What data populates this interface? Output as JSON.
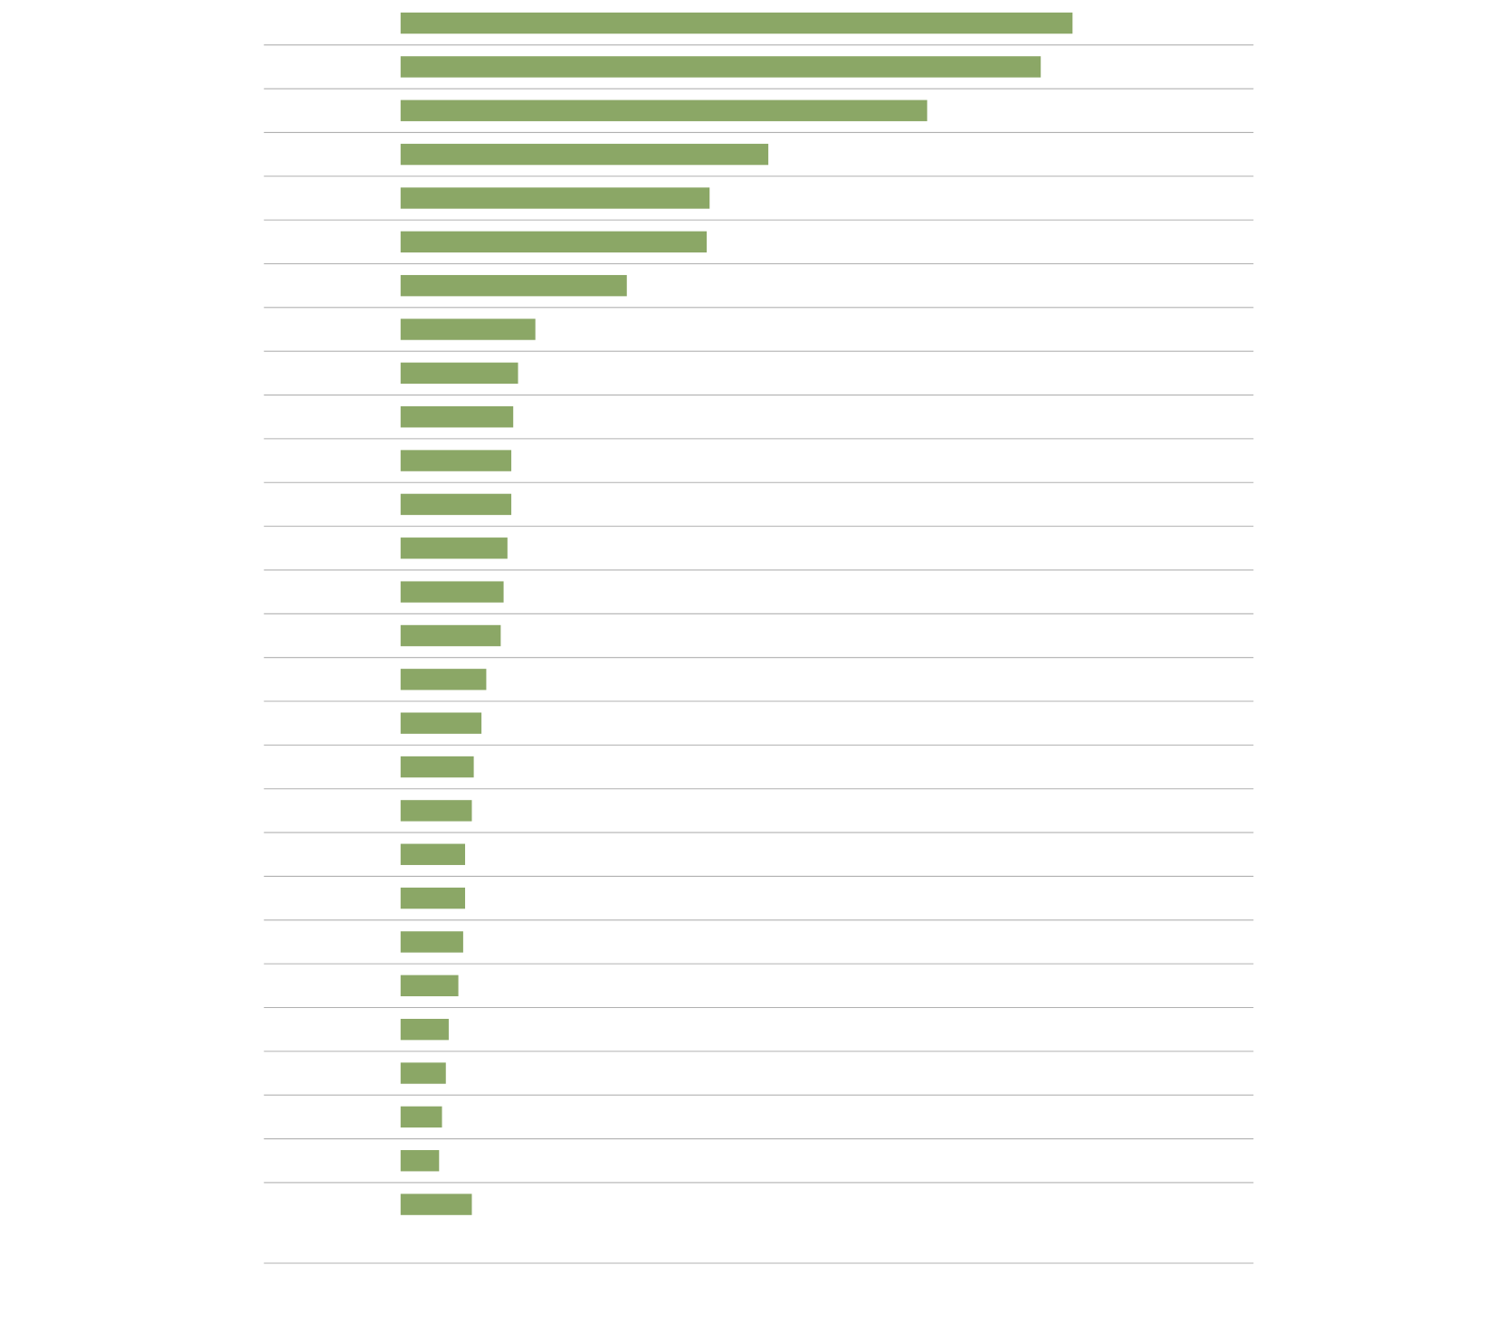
{
  "chart_data": {
    "type": "bar",
    "orientation": "horizontal",
    "color": "#8ba766",
    "values": [
      698,
      665,
      547,
      382,
      321,
      318,
      235,
      140,
      122,
      117,
      115,
      115,
      111,
      107,
      104,
      89,
      84,
      76,
      74,
      67,
      67,
      65,
      60,
      50,
      47,
      43,
      40,
      74
    ],
    "xlim": [
      0,
      886
    ]
  }
}
